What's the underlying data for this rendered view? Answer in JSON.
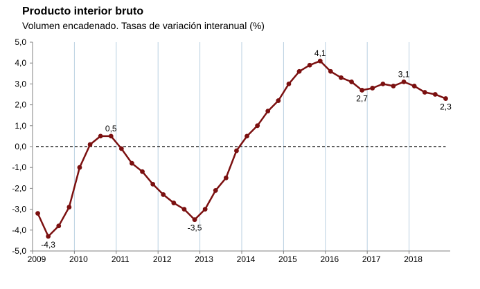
{
  "chart_data": {
    "type": "line",
    "title": "Producto interior bruto",
    "subtitle": "Volumen encadenado. Tasas de variación interanual (%)",
    "xlabel": "",
    "ylabel": "",
    "ylim": [
      -5.0,
      5.0
    ],
    "y_ticks": [
      "5,0",
      "4,0",
      "3,0",
      "2,0",
      "1,0",
      "0,0",
      "-1,0",
      "-2,0",
      "-3,0",
      "-4,0",
      "-5,0"
    ],
    "x_ticks": [
      "2009",
      "2010",
      "2011",
      "2012",
      "2013",
      "2014",
      "2015",
      "2016",
      "2017",
      "2018"
    ],
    "grid": "vertical, year boundaries",
    "reference_line": {
      "y": 0,
      "style": "dashed"
    },
    "colors": {
      "series": "#7b1010",
      "grid": "#b8cfe0",
      "axis": "#808080"
    },
    "series": [
      {
        "x": [
          "2009 T1",
          "2009 T2",
          "2009 T3",
          "2009 T4",
          "2010 T1",
          "2010 T2",
          "2010 T3",
          "2010 T4",
          "2011 T1",
          "2011 T2",
          "2011 T3",
          "2011 T4",
          "2012 T1",
          "2012 T2",
          "2012 T3",
          "2012 T4",
          "2013 T1",
          "2013 T2",
          "2013 T3",
          "2013 T4",
          "2014 T1",
          "2014 T2",
          "2014 T3",
          "2014 T4",
          "2015 T1",
          "2015 T2",
          "2015 T3",
          "2015 T4",
          "2016 T1",
          "2016 T2",
          "2016 T3",
          "2016 T4",
          "2017 T1",
          "2017 T2",
          "2017 T3",
          "2017 T4",
          "2018 T1",
          "2018 T2",
          "2018 T3",
          "2018 T4"
        ],
        "values": [
          -3.2,
          -4.3,
          -3.8,
          -2.9,
          -1.0,
          0.1,
          0.5,
          0.5,
          -0.1,
          -0.8,
          -1.2,
          -1.8,
          -2.3,
          -2.7,
          -3.0,
          -3.5,
          -3.0,
          -2.1,
          -1.5,
          -0.2,
          0.5,
          1.0,
          1.7,
          2.2,
          3.0,
          3.6,
          3.9,
          4.1,
          3.6,
          3.3,
          3.1,
          2.7,
          2.8,
          3.0,
          2.9,
          3.1,
          2.9,
          2.6,
          2.5,
          2.3
        ]
      }
    ],
    "data_labels": [
      {
        "index": 1,
        "text": "-4,3",
        "pos": "below"
      },
      {
        "index": 7,
        "text": "0,5",
        "pos": "above"
      },
      {
        "index": 15,
        "text": "-3,5",
        "pos": "below"
      },
      {
        "index": 27,
        "text": "4,1",
        "pos": "above"
      },
      {
        "index": 31,
        "text": "2,7",
        "pos": "below"
      },
      {
        "index": 35,
        "text": "3,1",
        "pos": "above"
      },
      {
        "index": 39,
        "text": "2,3",
        "pos": "below"
      }
    ]
  }
}
